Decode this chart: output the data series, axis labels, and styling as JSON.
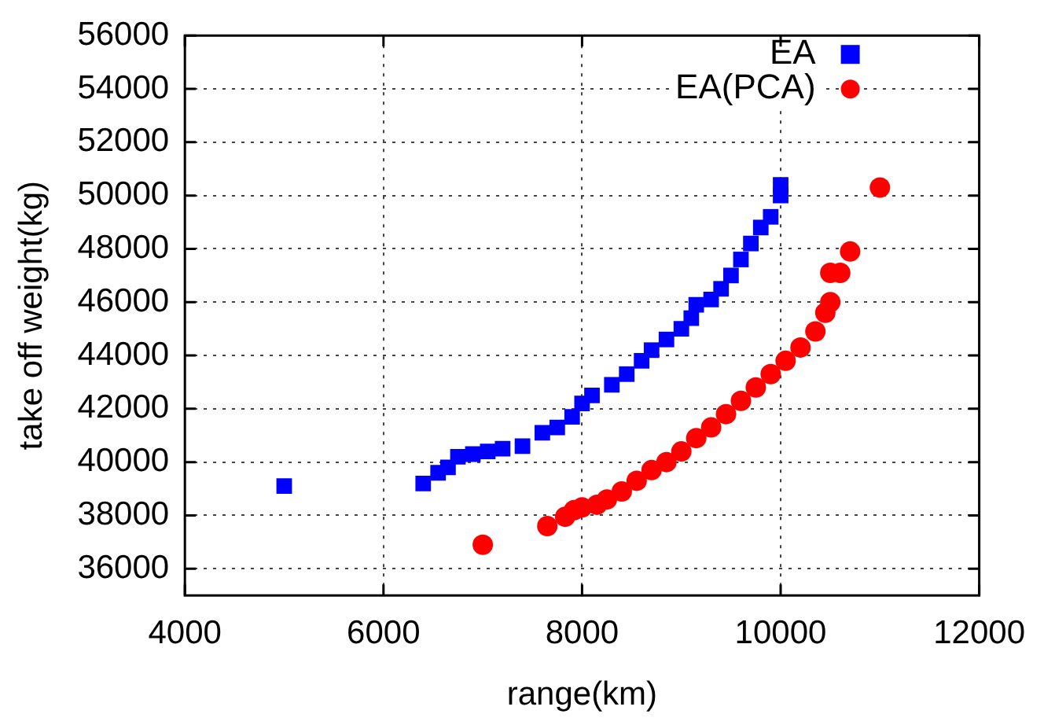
{
  "chart_data": {
    "type": "scatter",
    "xlabel": "range(km)",
    "ylabel": "take off weight(kg)",
    "xlim": [
      4000,
      12000
    ],
    "xticks": [
      4000,
      6000,
      8000,
      10000,
      12000
    ],
    "ylim": [
      35000,
      56000
    ],
    "yticks": [
      36000,
      38000,
      40000,
      42000,
      44000,
      46000,
      48000,
      50000,
      52000,
      54000,
      56000
    ],
    "grid": true,
    "legend": "top right",
    "series": [
      {
        "name": "EA",
        "color": "#0000ff",
        "marker": "square",
        "x": [
          5000,
          6400,
          6550,
          6650,
          6750,
          6900,
          7050,
          7200,
          7400,
          7600,
          7750,
          7900,
          8000,
          8100,
          8300,
          8450,
          8600,
          8700,
          8850,
          9000,
          9100,
          9150,
          9300,
          9400,
          9500,
          9600,
          9700,
          9800,
          9900,
          10000,
          10000
        ],
        "values": [
          39100,
          39200,
          39600,
          39800,
          40200,
          40300,
          40400,
          40500,
          40600,
          41100,
          41300,
          41700,
          42200,
          42500,
          42900,
          43300,
          43800,
          44200,
          44600,
          45000,
          45400,
          45900,
          46100,
          46500,
          47000,
          47600,
          48200,
          48800,
          49200,
          50000,
          50400
        ]
      },
      {
        "name": "EA(PCA)",
        "color": "#ff0000",
        "marker": "circle",
        "x": [
          7000,
          7650,
          7830,
          7920,
          8000,
          8150,
          8250,
          8400,
          8550,
          8700,
          8850,
          9000,
          9150,
          9300,
          9450,
          9600,
          9750,
          9900,
          10050,
          10200,
          10350,
          10450,
          10500,
          10500,
          10600,
          10700,
          11000
        ],
        "values": [
          36900,
          37600,
          37950,
          38200,
          38300,
          38400,
          38600,
          38900,
          39300,
          39700,
          40000,
          40400,
          40900,
          41300,
          41800,
          42300,
          42800,
          43300,
          43800,
          44300,
          44900,
          45600,
          46000,
          47100,
          47100,
          47900,
          50300
        ]
      }
    ]
  }
}
